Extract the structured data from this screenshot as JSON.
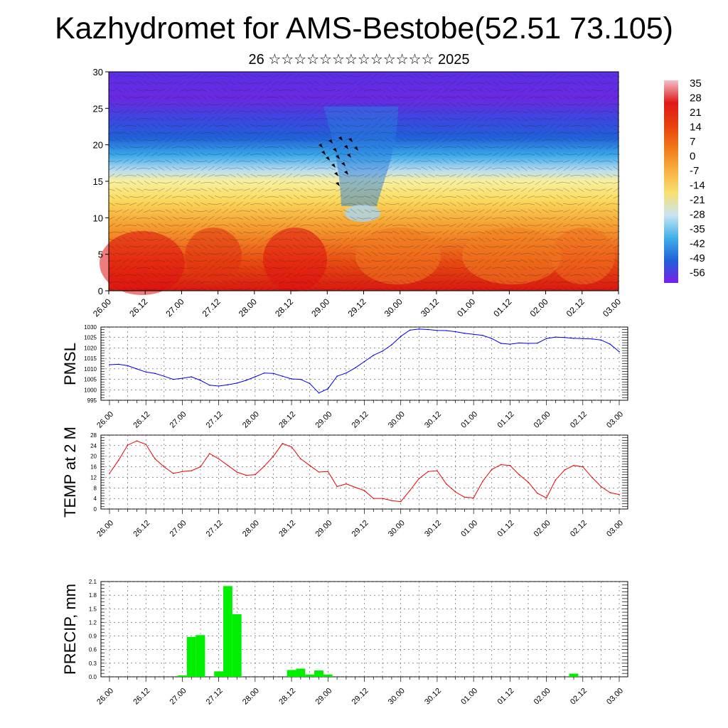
{
  "title": "Kazhydromet for AMS-Bestobe(52.51 73.105)",
  "subtitle": "26 ☆☆☆☆☆☆☆☆☆☆☆☆☆ 2025",
  "time_labels": [
    "26.00",
    "26.12",
    "27.00",
    "27.12",
    "28.00",
    "28.12",
    "29.00",
    "29.12",
    "30.00",
    "30.12",
    "01.00",
    "01.12",
    "02.00",
    "02.12",
    "03.00"
  ],
  "colors": {
    "pmsl_line": "#0000ee",
    "temp_line": "#ee0000",
    "precip_bar": "#00ee00",
    "colorbar": [
      "#f2c0c8",
      "#e01818",
      "#e84010",
      "#f07818",
      "#f8b040",
      "#f8e070",
      "#c8e4f0",
      "#40b0e8",
      "#2060d8",
      "#7a20e8"
    ]
  },
  "chart_data": [
    {
      "type": "heatmap",
      "title": "",
      "ylim": [
        0,
        30
      ],
      "yticks": [
        0,
        5,
        10,
        15,
        20,
        25,
        30
      ],
      "x_tick_labels_ref": "time_labels",
      "colorbar_labels": [
        "35",
        "28",
        "21",
        "14",
        "7",
        "0",
        "-7",
        "-14",
        "-21",
        "-28",
        "-35",
        "-42",
        "-49",
        "-56"
      ],
      "overlay": "wind barbs",
      "description_levels": "temperature field over height (0–30) and time"
    },
    {
      "type": "line",
      "ylabel": "PMSL",
      "ylim": [
        995,
        1030
      ],
      "yticks": [
        995,
        1000,
        1005,
        1010,
        1015,
        1020,
        1025,
        1030
      ],
      "x": [
        0,
        1,
        2,
        3,
        4,
        5,
        6,
        7,
        8,
        9,
        10,
        11,
        12,
        13,
        14,
        15,
        16,
        17,
        18,
        19,
        20,
        21,
        22,
        23,
        24,
        25,
        26,
        27,
        28,
        29,
        30,
        31,
        32,
        33,
        34,
        35,
        36,
        37,
        38,
        39,
        40,
        41,
        42,
        43,
        44,
        45,
        46,
        47,
        48,
        49,
        50,
        51,
        52,
        53,
        54,
        55,
        56
      ],
      "values": [
        1012,
        1012.2,
        1011.5,
        1010,
        1008.5,
        1007.8,
        1006.5,
        1005,
        1005.5,
        1006.2,
        1004.5,
        1002.2,
        1001.8,
        1002.4,
        1003.2,
        1004.5,
        1006.2,
        1008,
        1007.8,
        1006.5,
        1005.2,
        1005,
        1003,
        998.5,
        1000.5,
        1006.5,
        1008,
        1010.5,
        1013.5,
        1016.5,
        1018.5,
        1021.5,
        1025.5,
        1028.5,
        1029,
        1028.8,
        1028.4,
        1028.3,
        1027.8,
        1027,
        1026.5,
        1026,
        1024.5,
        1022.2,
        1021.8,
        1022.4,
        1022.2,
        1022.3,
        1024.5,
        1025.2,
        1025,
        1024.6,
        1024.5,
        1024.3,
        1023.8,
        1021.8,
        1018.2
      ],
      "grid": true
    },
    {
      "type": "line",
      "ylabel": "TEMP at 2 M",
      "ylim": [
        0,
        28
      ],
      "yticks": [
        0,
        4,
        8,
        12,
        16,
        20,
        24,
        28
      ],
      "x": [
        0,
        1,
        2,
        3,
        4,
        5,
        6,
        7,
        8,
        9,
        10,
        11,
        12,
        13,
        14,
        15,
        16,
        17,
        18,
        19,
        20,
        21,
        22,
        23,
        24,
        25,
        26,
        27,
        28,
        29,
        30,
        31,
        32,
        33,
        34,
        35,
        36,
        37,
        38,
        39,
        40,
        41,
        42,
        43,
        44,
        45,
        46,
        47,
        48,
        49,
        50,
        51,
        52,
        53,
        54,
        55,
        56
      ],
      "values": [
        13.5,
        18.5,
        24.2,
        25.8,
        24.5,
        19,
        16,
        13.5,
        14.2,
        14.5,
        16,
        21,
        19,
        16.5,
        14,
        12.8,
        13,
        16.2,
        20,
        24.8,
        23.5,
        19,
        16.5,
        14,
        14.2,
        8.5,
        9.5,
        8.2,
        7,
        4,
        4,
        3.2,
        2.8,
        7,
        11.5,
        14.2,
        14.5,
        9.5,
        6.5,
        4.5,
        4.2,
        10.5,
        15,
        16.8,
        16.5,
        13,
        10.2,
        6,
        4.2,
        11,
        14.8,
        16.5,
        16,
        12,
        8.5,
        6.2,
        5.5
      ],
      "grid": true
    },
    {
      "type": "bar",
      "ylabel": "PRECIP, mm",
      "ylim": [
        0,
        2.1
      ],
      "yticks": [
        0.0,
        0.3,
        0.6,
        0.9,
        1.2,
        1.5,
        1.8,
        2.1
      ],
      "ytick_labels": [
        "0.0",
        "0.3",
        "0.6",
        "0.9",
        "1.2",
        "1.5",
        "1.8",
        "2.1"
      ],
      "x": [
        0,
        1,
        2,
        3,
        4,
        5,
        6,
        7,
        8,
        9,
        10,
        11,
        12,
        13,
        14,
        15,
        16,
        17,
        18,
        19,
        20,
        21,
        22,
        23,
        24,
        25,
        26,
        27,
        28,
        29,
        30,
        31,
        32,
        33,
        34,
        35,
        36,
        37,
        38,
        39,
        40,
        41,
        42,
        43,
        44,
        45,
        46,
        47,
        48,
        49,
        50,
        51,
        52,
        53,
        54,
        55,
        56
      ],
      "values": [
        0,
        0,
        0,
        0,
        0,
        0,
        0,
        0,
        0.03,
        0.88,
        0.92,
        0,
        0.12,
        2.0,
        1.38,
        0,
        0,
        0,
        0,
        0,
        0.15,
        0.18,
        0.05,
        0.14,
        0.05,
        0,
        0,
        0,
        0,
        0,
        0,
        0,
        0,
        0,
        0,
        0,
        0,
        0,
        0,
        0,
        0,
        0,
        0,
        0,
        0,
        0,
        0,
        0,
        0,
        0,
        0,
        0.07,
        0,
        0,
        0,
        0,
        0
      ],
      "grid": true
    }
  ]
}
